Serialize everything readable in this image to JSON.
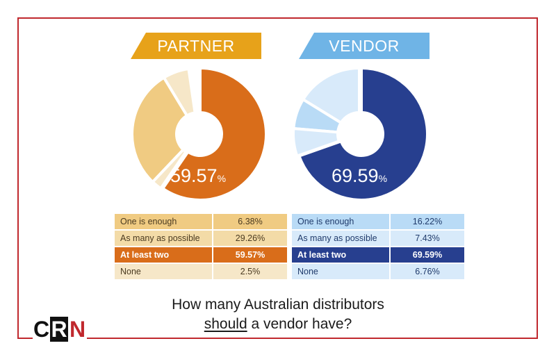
{
  "title": {
    "line1": "How many Australian distributors",
    "line2_em": "should",
    "line2_rest": " a vendor have?"
  },
  "logo": {
    "c": "C",
    "r": "R",
    "n": "N"
  },
  "chart_data": [
    {
      "type": "pie",
      "title": "PARTNER",
      "center_value": "59.57",
      "center_unit": "%",
      "colors": {
        "banner": "#e7a21a",
        "highlight": "#d96d1a",
        "light": "#f6e7c8",
        "mid": "#f0cb82"
      },
      "categories": [
        "One is enough",
        "As many as possible",
        "At least two",
        "None"
      ],
      "values": [
        6.38,
        29.26,
        59.57,
        2.5
      ],
      "value_labels": [
        "6.38%",
        "29.26%",
        "59.57%",
        "2.5%"
      ],
      "highlight_index": 2
    },
    {
      "type": "pie",
      "title": "VENDOR",
      "center_value": "69.59",
      "center_unit": "%",
      "colors": {
        "banner": "#6fb4e6",
        "highlight": "#273f8f",
        "light": "#d8eafa",
        "mid": "#b9dbf6"
      },
      "categories": [
        "One is enough",
        "As many as possible",
        "At least two",
        "None"
      ],
      "values": [
        16.22,
        7.43,
        69.59,
        6.76
      ],
      "value_labels": [
        "16.22%",
        "7.43%",
        "69.59%",
        "6.76%"
      ],
      "highlight_index": 2
    }
  ]
}
